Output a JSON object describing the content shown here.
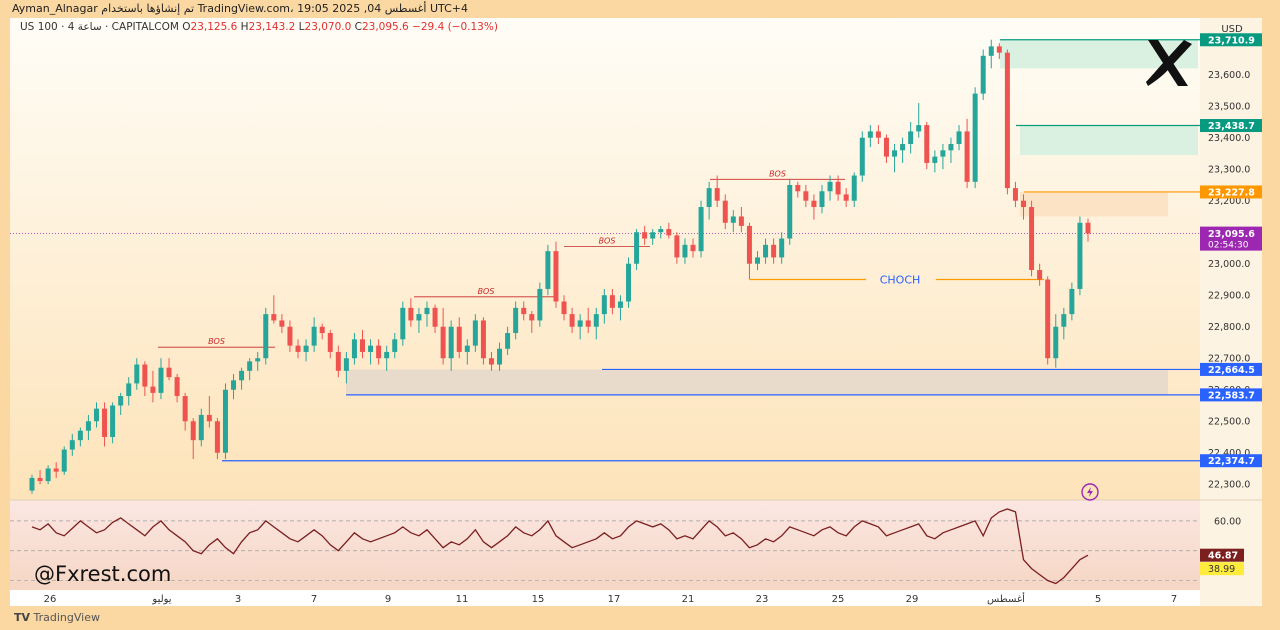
{
  "topbar": {
    "text": "Ayman_Alnagar تم إنشاؤها باستخدام TradingView.com، أغسطس 04, 2025 19:05 UTC+4"
  },
  "header": {
    "symbol": "US 100 · 4 ساعة · CAPITALCOM",
    "open_label": "O",
    "open": "23,125.6",
    "high_label": "H",
    "high": "23,143.2",
    "low_label": "L",
    "low": "23,070.0",
    "close_label": "C",
    "close": "23,095.6",
    "change": "−29.4 (−0.13%)"
  },
  "currency": "USD",
  "logo_icon": "x-logo-icon",
  "watermark": "@Fxrest.com",
  "footer_brand": "TradingView",
  "annotations": {
    "bos": "BOS",
    "choch": "CHOCH"
  },
  "price_tags": {
    "current_price": "23,095.6",
    "countdown": "02:54:30"
  },
  "colors": {
    "up": "#26a69a",
    "down": "#ef5350",
    "level_blue": "#2962ff",
    "level_orange": "#ff9800",
    "level_green": "#089981",
    "current": "#9c27b0",
    "rsi_line": "#7b1f1f"
  },
  "chart_data": [
    {
      "type": "candlestick",
      "title": "",
      "yaxis": {
        "unit": "USD",
        "range": [
          22250,
          23780
        ],
        "ticks": [
          22300,
          22400,
          22500,
          22600,
          22700,
          22800,
          22900,
          23000,
          23100,
          23200,
          23300,
          23400,
          23500,
          23600
        ],
        "tick_labels": [
          "22,300.0",
          "22,400.0",
          "22,500.0",
          "22,600.0",
          "22,700.0",
          "22,800.0",
          "22,900.0",
          "23,000.0",
          "23,100.0",
          "23,200.0",
          "23,300.0",
          "23,400.0",
          "23,500.0",
          "23,600.0"
        ]
      },
      "xaxis": {
        "tick_labels": [
          "26",
          "يوليو",
          "3",
          "7",
          "9",
          "11",
          "15",
          "17",
          "21",
          "23",
          "25",
          "29",
          "أغسطس",
          "5",
          "7"
        ]
      },
      "levels": [
        {
          "label": "23,710.9",
          "value": 23710.9,
          "color": "#089981"
        },
        {
          "label": "23,438.7",
          "value": 23438.7,
          "color": "#089981"
        },
        {
          "label": "23,227.8",
          "value": 23227.8,
          "color": "#ff9800"
        },
        {
          "label": "22,664.5",
          "value": 22664.5,
          "color": "#2962ff"
        },
        {
          "label": "22,583.7",
          "value": 22583.7,
          "color": "#2962ff"
        },
        {
          "label": "22,374.7",
          "value": 22374.7,
          "color": "#2962ff"
        }
      ],
      "zones": [
        {
          "kind": "supply",
          "from": 23620,
          "to": 23710.9
        },
        {
          "kind": "supply",
          "from": 23345,
          "to": 23438.7
        },
        {
          "kind": "supply-orange",
          "from": 23150,
          "to": 23227.8
        },
        {
          "kind": "demand",
          "from": 22583.7,
          "to": 22664.5
        }
      ],
      "bos_levels": [
        22735,
        22895,
        23055,
        23268
      ],
      "choch_level": 22950,
      "candles_ohlc": [
        [
          22280,
          22330,
          22270,
          22320
        ],
        [
          22320,
          22345,
          22300,
          22310
        ],
        [
          22310,
          22360,
          22300,
          22350
        ],
        [
          22350,
          22370,
          22320,
          22340
        ],
        [
          22340,
          22420,
          22330,
          22410
        ],
        [
          22410,
          22460,
          22390,
          22440
        ],
        [
          22440,
          22480,
          22420,
          22470
        ],
        [
          22470,
          22520,
          22440,
          22500
        ],
        [
          22500,
          22560,
          22480,
          22540
        ],
        [
          22540,
          22560,
          22420,
          22450
        ],
        [
          22450,
          22560,
          22430,
          22550
        ],
        [
          22550,
          22590,
          22520,
          22580
        ],
        [
          22580,
          22640,
          22550,
          22620
        ],
        [
          22620,
          22700,
          22600,
          22680
        ],
        [
          22680,
          22690,
          22580,
          22610
        ],
        [
          22610,
          22660,
          22560,
          22590
        ],
        [
          22590,
          22700,
          22570,
          22670
        ],
        [
          22670,
          22700,
          22630,
          22640
        ],
        [
          22640,
          22650,
          22560,
          22580
        ],
        [
          22580,
          22590,
          22470,
          22500
        ],
        [
          22500,
          22510,
          22380,
          22440
        ],
        [
          22440,
          22540,
          22420,
          22520
        ],
        [
          22520,
          22580,
          22480,
          22500
        ],
        [
          22500,
          22510,
          22380,
          22400
        ],
        [
          22400,
          22620,
          22380,
          22600
        ],
        [
          22600,
          22650,
          22570,
          22630
        ],
        [
          22630,
          22670,
          22600,
          22660
        ],
        [
          22660,
          22700,
          22630,
          22690
        ],
        [
          22690,
          22720,
          22660,
          22700
        ],
        [
          22700,
          22860,
          22680,
          22840
        ],
        [
          22840,
          22900,
          22810,
          22820
        ],
        [
          22820,
          22840,
          22780,
          22800
        ],
        [
          22800,
          22820,
          22720,
          22740
        ],
        [
          22740,
          22760,
          22700,
          22720
        ],
        [
          22720,
          22760,
          22690,
          22740
        ],
        [
          22740,
          22830,
          22720,
          22800
        ],
        [
          22800,
          22810,
          22760,
          22780
        ],
        [
          22780,
          22790,
          22700,
          22720
        ],
        [
          22720,
          22740,
          22640,
          22660
        ],
        [
          22660,
          22720,
          22620,
          22700
        ],
        [
          22700,
          22780,
          22680,
          22760
        ],
        [
          22760,
          22790,
          22700,
          22720
        ],
        [
          22720,
          22760,
          22680,
          22740
        ],
        [
          22740,
          22760,
          22680,
          22700
        ],
        [
          22700,
          22740,
          22660,
          22720
        ],
        [
          22720,
          22780,
          22700,
          22760
        ],
        [
          22760,
          22880,
          22740,
          22860
        ],
        [
          22860,
          22890,
          22800,
          22820
        ],
        [
          22820,
          22860,
          22780,
          22840
        ],
        [
          22840,
          22880,
          22800,
          22860
        ],
        [
          22860,
          22870,
          22780,
          22800
        ],
        [
          22800,
          22860,
          22680,
          22700
        ],
        [
          22700,
          22820,
          22660,
          22800
        ],
        [
          22800,
          22830,
          22700,
          22720
        ],
        [
          22720,
          22760,
          22680,
          22740
        ],
        [
          22740,
          22840,
          22720,
          22820
        ],
        [
          22820,
          22830,
          22680,
          22700
        ],
        [
          22700,
          22720,
          22660,
          22680
        ],
        [
          22680,
          22750,
          22660,
          22730
        ],
        [
          22730,
          22800,
          22710,
          22780
        ],
        [
          22780,
          22880,
          22760,
          22860
        ],
        [
          22860,
          22880,
          22820,
          22840
        ],
        [
          22840,
          22850,
          22780,
          22820
        ],
        [
          22820,
          22940,
          22800,
          22920
        ],
        [
          22920,
          23060,
          22900,
          23040
        ],
        [
          23040,
          23070,
          22860,
          22880
        ],
        [
          22880,
          22900,
          22820,
          22840
        ],
        [
          22840,
          22860,
          22780,
          22800
        ],
        [
          22800,
          22840,
          22760,
          22820
        ],
        [
          22820,
          22860,
          22780,
          22800
        ],
        [
          22800,
          22860,
          22760,
          22840
        ],
        [
          22840,
          22920,
          22810,
          22900
        ],
        [
          22900,
          22920,
          22840,
          22860
        ],
        [
          22860,
          22900,
          22820,
          22880
        ],
        [
          22880,
          23020,
          22860,
          23000
        ],
        [
          23000,
          23110,
          22980,
          23100
        ],
        [
          23100,
          23120,
          23060,
          23080
        ],
        [
          23080,
          23110,
          23060,
          23100
        ],
        [
          23100,
          23120,
          23080,
          23110
        ],
        [
          23110,
          23130,
          23080,
          23090
        ],
        [
          23090,
          23100,
          23000,
          23020
        ],
        [
          23020,
          23080,
          23000,
          23060
        ],
        [
          23060,
          23080,
          23020,
          23040
        ],
        [
          23040,
          23200,
          23020,
          23180
        ],
        [
          23180,
          23260,
          23140,
          23240
        ],
        [
          23240,
          23280,
          23180,
          23200
        ],
        [
          23200,
          23220,
          23110,
          23130
        ],
        [
          23130,
          23170,
          23100,
          23150
        ],
        [
          23150,
          23180,
          23100,
          23120
        ],
        [
          23120,
          23130,
          22950,
          23000
        ],
        [
          23000,
          23040,
          22980,
          23020
        ],
        [
          23020,
          23080,
          23000,
          23060
        ],
        [
          23060,
          23080,
          23000,
          23020
        ],
        [
          23020,
          23100,
          23000,
          23080
        ],
        [
          23080,
          23270,
          23060,
          23250
        ],
        [
          23250,
          23260,
          23210,
          23230
        ],
        [
          23230,
          23250,
          23180,
          23200
        ],
        [
          23200,
          23220,
          23140,
          23180
        ],
        [
          23180,
          23250,
          23160,
          23230
        ],
        [
          23230,
          23280,
          23200,
          23260
        ],
        [
          23260,
          23280,
          23200,
          23220
        ],
        [
          23220,
          23240,
          23180,
          23200
        ],
        [
          23200,
          23290,
          23180,
          23280
        ],
        [
          23280,
          23420,
          23260,
          23400
        ],
        [
          23400,
          23440,
          23370,
          23420
        ],
        [
          23420,
          23440,
          23380,
          23400
        ],
        [
          23400,
          23410,
          23320,
          23340
        ],
        [
          23340,
          23380,
          23290,
          23360
        ],
        [
          23360,
          23400,
          23320,
          23380
        ],
        [
          23380,
          23450,
          23350,
          23420
        ],
        [
          23420,
          23510,
          23400,
          23440
        ],
        [
          23440,
          23450,
          23300,
          23320
        ],
        [
          23320,
          23360,
          23290,
          23340
        ],
        [
          23340,
          23380,
          23300,
          23360
        ],
        [
          23360,
          23400,
          23320,
          23380
        ],
        [
          23380,
          23440,
          23360,
          23420
        ],
        [
          23420,
          23460,
          23240,
          23260
        ],
        [
          23260,
          23560,
          23240,
          23540
        ],
        [
          23540,
          23680,
          23520,
          23660
        ],
        [
          23660,
          23711,
          23620,
          23690
        ],
        [
          23690,
          23700,
          23650,
          23670
        ],
        [
          23670,
          23680,
          23220,
          23240
        ],
        [
          23240,
          23260,
          23180,
          23200
        ],
        [
          23200,
          23220,
          23140,
          23180
        ],
        [
          23180,
          23200,
          22960,
          22980
        ],
        [
          22980,
          23000,
          22930,
          22950
        ],
        [
          22950,
          22960,
          22680,
          22700
        ],
        [
          22700,
          22840,
          22670,
          22800
        ],
        [
          22800,
          22860,
          22760,
          22840
        ],
        [
          22840,
          22940,
          22820,
          22920
        ],
        [
          22920,
          23150,
          22900,
          23130
        ],
        [
          23130,
          23143,
          23070,
          23096
        ]
      ]
    },
    {
      "type": "line",
      "title": "",
      "indicator": "RSI",
      "yaxis": {
        "tick_labels": [
          "60.00"
        ]
      },
      "current_value": "46.87",
      "secondary_value": "38.99",
      "values": [
        66,
        64,
        68,
        62,
        60,
        65,
        70,
        66,
        62,
        64,
        69,
        72,
        68,
        64,
        60,
        66,
        70,
        64,
        60,
        56,
        50,
        48,
        54,
        58,
        52,
        48,
        56,
        62,
        64,
        70,
        66,
        62,
        58,
        56,
        60,
        64,
        60,
        54,
        50,
        56,
        62,
        58,
        56,
        58,
        60,
        62,
        66,
        62,
        60,
        64,
        58,
        52,
        56,
        54,
        58,
        64,
        56,
        52,
        56,
        60,
        66,
        62,
        60,
        64,
        70,
        60,
        56,
        52,
        54,
        56,
        58,
        62,
        58,
        60,
        66,
        70,
        68,
        66,
        68,
        64,
        58,
        60,
        58,
        64,
        70,
        66,
        60,
        62,
        58,
        52,
        54,
        58,
        56,
        60,
        66,
        64,
        62,
        60,
        64,
        66,
        62,
        60,
        66,
        70,
        68,
        66,
        60,
        62,
        64,
        66,
        68,
        60,
        58,
        62,
        64,
        66,
        68,
        70,
        60,
        72,
        76,
        78,
        76,
        44,
        38,
        34,
        30,
        28,
        32,
        38,
        44,
        47
      ]
    }
  ]
}
